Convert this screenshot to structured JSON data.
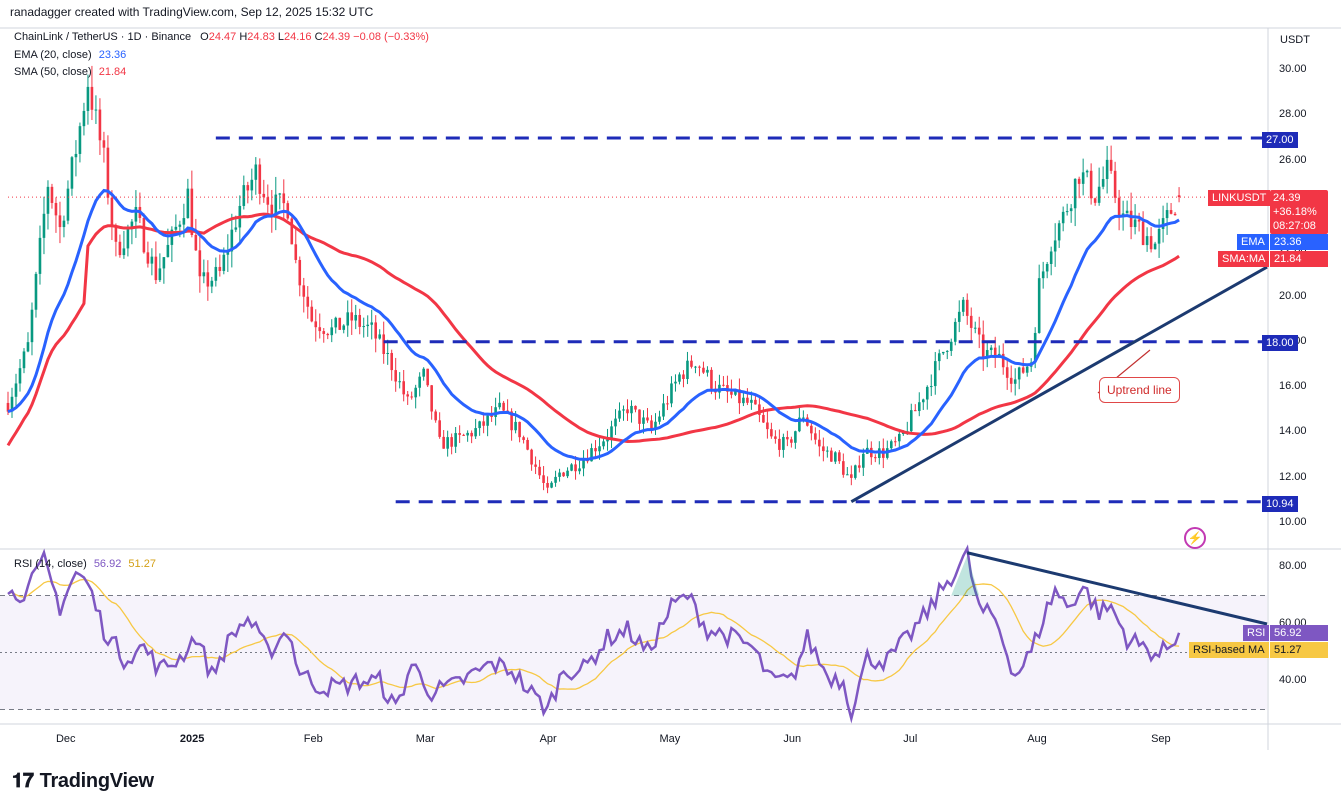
{
  "header": {
    "attribution": "ranadagger created with TradingView.com, Sep 12, 2025 15:32 UTC",
    "symbol": "ChainLink / TetherUS · 1D · Binance",
    "open_label": "O",
    "open": "24.47",
    "high_label": "H",
    "high": "24.83",
    "low_label": "L",
    "low": "24.16",
    "close_label": "C",
    "close": "24.39",
    "change": "−0.08 (−0.33%)"
  },
  "legend": {
    "ema_label": "EMA (20, close)",
    "ema_value": "23.36",
    "sma_label": "SMA (50, close)",
    "sma_value": "21.84",
    "rsi_label": "RSI (14, close)",
    "rsi_value": "56.92",
    "rsi_ma_value": "51.27"
  },
  "currency": "USDT",
  "price_tags": {
    "symbol": "LINKUSDT",
    "price": "24.39",
    "pct": "+36.18%",
    "countdown": "08:27:08",
    "ema_name": "EMA",
    "ema": "23.36",
    "sma_name": "SMA:MA",
    "sma": "21.84",
    "level_27": "27.00",
    "level_18": "18.00",
    "level_1094": "10.94",
    "rsi_name": "RSI",
    "rsi": "56.92",
    "rsi_ma_name": "RSI-based MA",
    "rsi_ma": "51.27"
  },
  "annotation": "Uptrend line",
  "footer_logo": "TradingView",
  "colors": {
    "up": "#089981",
    "down": "#f23645",
    "ema": "#2962ff",
    "sma": "#f23645",
    "level": "#1e2bb8",
    "trend": "#1c3a70",
    "rsi": "#7e57c2",
    "rsi_ma": "#f7c844"
  },
  "chart_data": [
    {
      "type": "candlestick",
      "title": "ChainLink / TetherUS · 1D · Binance",
      "ylabel": "USDT",
      "ylim": [
        10,
        30
      ],
      "y_ticks": [
        "10.00",
        "12.00",
        "14.00",
        "16.00",
        "18.00",
        "20.00",
        "22.00",
        "24.00",
        "26.00",
        "28.00",
        "30.00"
      ],
      "x_ticks": [
        "Dec",
        "2025",
        "Feb",
        "Mar",
        "Apr",
        "May",
        "Jun",
        "Jul",
        "Aug",
        "Sep"
      ],
      "x_tick_dates": [
        "2024-12-01",
        "2025-01-01",
        "2025-02-01",
        "2025-03-01",
        "2025-04-01",
        "2025-05-01",
        "2025-06-01",
        "2025-07-01",
        "2025-08-01",
        "2025-09-01"
      ],
      "x_range": [
        "2024-11-23",
        "2025-10-04"
      ],
      "grid": false,
      "close_anchors": [
        [
          "2024-11-23",
          15.3
        ],
        [
          "2024-11-28",
          17.8
        ],
        [
          "2024-12-03",
          25.0
        ],
        [
          "2024-12-06",
          23.0
        ],
        [
          "2024-12-10",
          26.5
        ],
        [
          "2024-12-13",
          29.5
        ],
        [
          "2024-12-17",
          26.0
        ],
        [
          "2024-12-20",
          22.0
        ],
        [
          "2024-12-25",
          23.5
        ],
        [
          "2024-12-30",
          21.0
        ],
        [
          "2025-01-03",
          22.5
        ],
        [
          "2025-01-07",
          24.5
        ],
        [
          "2025-01-10",
          20.5
        ],
        [
          "2025-01-15",
          21.0
        ],
        [
          "2025-01-20",
          24.0
        ],
        [
          "2025-01-24",
          25.5
        ],
        [
          "2025-01-28",
          24.0
        ],
        [
          "2025-02-01",
          24.0
        ],
        [
          "2025-02-03",
          21.5
        ],
        [
          "2025-02-07",
          19.0
        ],
        [
          "2025-02-12",
          18.5
        ],
        [
          "2025-02-17",
          19.0
        ],
        [
          "2025-02-22",
          18.5
        ],
        [
          "2025-02-27",
          17.0
        ],
        [
          "2025-03-03",
          15.3
        ],
        [
          "2025-03-07",
          16.5
        ],
        [
          "2025-03-11",
          13.5
        ],
        [
          "2025-03-16",
          13.7
        ],
        [
          "2025-03-21",
          14.2
        ],
        [
          "2025-03-26",
          15.0
        ],
        [
          "2025-03-31",
          14.0
        ],
        [
          "2025-04-04",
          12.5
        ],
        [
          "2025-04-07",
          11.3
        ],
        [
          "2025-04-10",
          12.2
        ],
        [
          "2025-04-15",
          12.7
        ],
        [
          "2025-04-22",
          13.9
        ],
        [
          "2025-04-27",
          15.1
        ],
        [
          "2025-05-03",
          14.1
        ],
        [
          "2025-05-10",
          16.5
        ],
        [
          "2025-05-14",
          17.2
        ],
        [
          "2025-05-19",
          16.0
        ],
        [
          "2025-05-23",
          15.6
        ],
        [
          "2025-05-28",
          15.2
        ],
        [
          "2025-06-02",
          13.7
        ],
        [
          "2025-06-06",
          13.4
        ],
        [
          "2025-06-10",
          14.8
        ],
        [
          "2025-06-14",
          13.3
        ],
        [
          "2025-06-18",
          12.9
        ],
        [
          "2025-06-22",
          11.8
        ],
        [
          "2025-06-25",
          13.2
        ],
        [
          "2025-06-30",
          13.1
        ],
        [
          "2025-07-04",
          13.6
        ],
        [
          "2025-07-09",
          15.3
        ],
        [
          "2025-07-14",
          17.2
        ],
        [
          "2025-07-20",
          19.5
        ],
        [
          "2025-07-25",
          17.5
        ],
        [
          "2025-07-29",
          17.3
        ],
        [
          "2025-08-02",
          16.3
        ],
        [
          "2025-08-06",
          17.2
        ],
        [
          "2025-08-08",
          20.5
        ],
        [
          "2025-08-11",
          22.5
        ],
        [
          "2025-08-14",
          23.5
        ],
        [
          "2025-08-18",
          25.5
        ],
        [
          "2025-08-22",
          24.5
        ],
        [
          "2025-08-25",
          25.5
        ],
        [
          "2025-08-29",
          23.5
        ],
        [
          "2025-09-02",
          23.0
        ],
        [
          "2025-09-06",
          22.3
        ],
        [
          "2025-09-10",
          23.8
        ],
        [
          "2025-09-12",
          24.39
        ]
      ],
      "series": [
        {
          "name": "EMA (20, close)",
          "last": 23.36
        },
        {
          "name": "SMA (50, close)",
          "last": 21.84
        }
      ],
      "horizontal_levels": [
        {
          "value": 27.0,
          "from": "2025-01-14",
          "to": "2025-10-04"
        },
        {
          "value": 18.0,
          "from": "2025-02-25",
          "to": "2025-10-04"
        },
        {
          "value": 10.94,
          "from": "2025-02-28",
          "to": "2025-10-04"
        }
      ],
      "trend_line": {
        "from": [
          "2025-06-22",
          10.94
        ],
        "to": [
          "2025-10-04",
          21.3
        ]
      }
    },
    {
      "type": "line",
      "title": "RSI (14, close)",
      "ylim": [
        25,
        90
      ],
      "y_ticks": [
        "40.00",
        "60.00",
        "80.00"
      ],
      "bands": [
        30,
        50,
        70
      ],
      "rsi_anchors": [
        [
          "2024-11-23",
          70
        ],
        [
          "2024-11-28",
          72
        ],
        [
          "2024-12-02",
          82
        ],
        [
          "2024-12-06",
          66
        ],
        [
          "2024-12-10",
          78
        ],
        [
          "2024-12-13",
          74
        ],
        [
          "2024-12-17",
          58
        ],
        [
          "2024-12-22",
          48
        ],
        [
          "2024-12-27",
          52
        ],
        [
          "2024-12-31",
          44
        ],
        [
          "2025-01-05",
          48
        ],
        [
          "2025-01-09",
          56
        ],
        [
          "2025-01-13",
          42
        ],
        [
          "2025-01-18",
          56
        ],
        [
          "2025-01-22",
          62
        ],
        [
          "2025-01-27",
          50
        ],
        [
          "2025-02-01",
          58
        ],
        [
          "2025-02-04",
          43
        ],
        [
          "2025-02-09",
          38
        ],
        [
          "2025-02-14",
          38
        ],
        [
          "2025-02-19",
          40
        ],
        [
          "2025-02-24",
          40
        ],
        [
          "2025-02-28",
          30
        ],
        [
          "2025-03-04",
          46
        ],
        [
          "2025-03-09",
          36
        ],
        [
          "2025-03-14",
          38
        ],
        [
          "2025-03-19",
          42
        ],
        [
          "2025-03-24",
          46
        ],
        [
          "2025-03-29",
          44
        ],
        [
          "2025-04-02",
          37
        ],
        [
          "2025-04-07",
          30
        ],
        [
          "2025-04-11",
          44
        ],
        [
          "2025-04-16",
          44
        ],
        [
          "2025-04-22",
          55
        ],
        [
          "2025-04-27",
          58
        ],
        [
          "2025-05-02",
          50
        ],
        [
          "2025-05-08",
          66
        ],
        [
          "2025-05-12",
          70
        ],
        [
          "2025-05-17",
          58
        ],
        [
          "2025-05-22",
          56
        ],
        [
          "2025-05-28",
          52
        ],
        [
          "2025-06-02",
          40
        ],
        [
          "2025-06-07",
          40
        ],
        [
          "2025-06-11",
          55
        ],
        [
          "2025-06-16",
          42
        ],
        [
          "2025-06-20",
          40
        ],
        [
          "2025-06-22",
          30
        ],
        [
          "2025-06-26",
          48
        ],
        [
          "2025-07-01",
          47
        ],
        [
          "2025-07-06",
          55
        ],
        [
          "2025-07-11",
          64
        ],
        [
          "2025-07-16",
          75
        ],
        [
          "2025-07-21",
          84
        ],
        [
          "2025-07-24",
          65
        ],
        [
          "2025-07-28",
          62
        ],
        [
          "2025-08-02",
          42
        ],
        [
          "2025-08-06",
          50
        ],
        [
          "2025-08-09",
          62
        ],
        [
          "2025-08-12",
          72
        ],
        [
          "2025-08-15",
          66
        ],
        [
          "2025-08-19",
          73
        ],
        [
          "2025-08-23",
          64
        ],
        [
          "2025-08-26",
          66
        ],
        [
          "2025-08-30",
          55
        ],
        [
          "2025-09-03",
          52
        ],
        [
          "2025-09-07",
          49
        ],
        [
          "2025-09-10",
          53
        ],
        [
          "2025-09-12",
          56.92
        ]
      ],
      "series": [
        {
          "name": "RSI",
          "last": 56.92
        },
        {
          "name": "RSI-based MA",
          "last": 51.27
        }
      ],
      "trend_line": {
        "from": [
          "2025-07-21",
          85
        ],
        "to": [
          "2025-10-04",
          60
        ]
      }
    }
  ]
}
